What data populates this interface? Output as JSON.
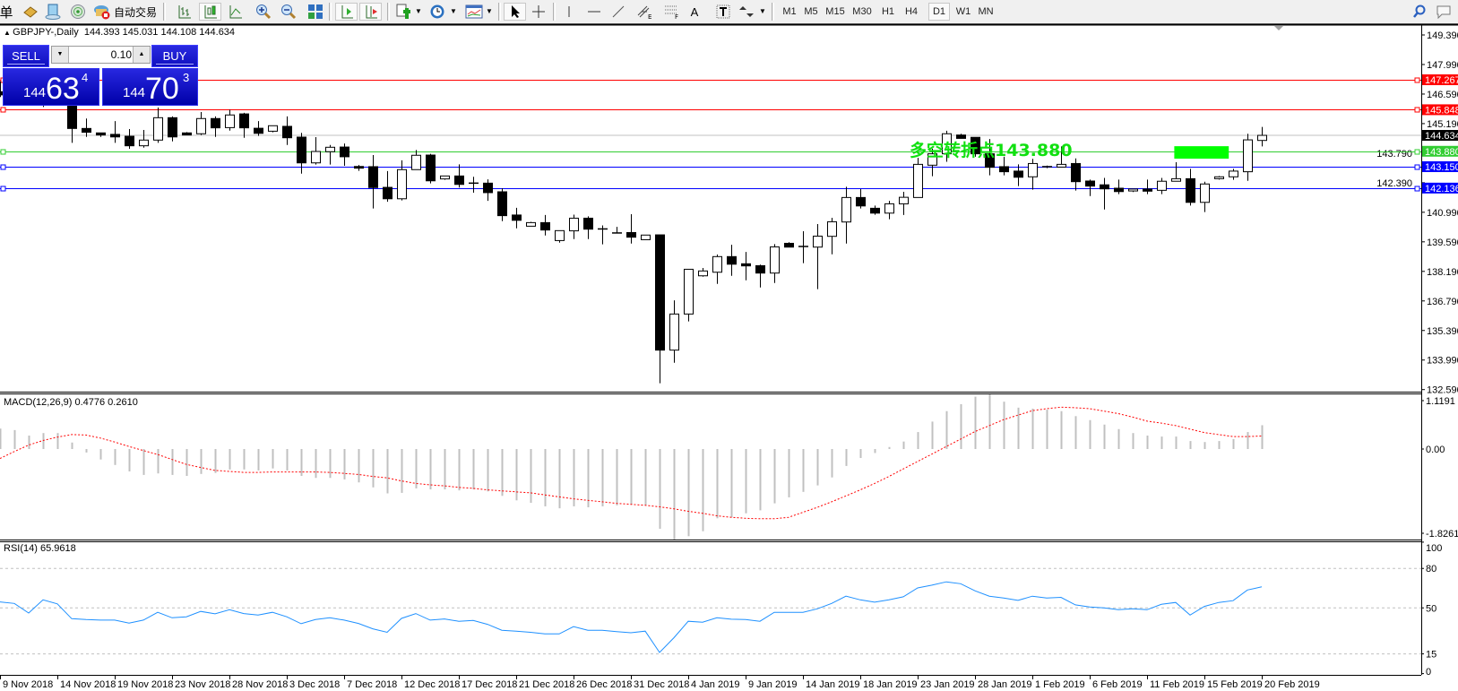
{
  "toolbar": {
    "cut_label": "单",
    "auto_trade_label": "自动交易",
    "timeframes": [
      "M1",
      "M5",
      "M15",
      "M30",
      "H1",
      "H4",
      "D1",
      "W1",
      "MN"
    ],
    "active_timeframe": "D1",
    "icons": [
      "book-icon",
      "navigator-icon",
      "signal-icon",
      "auto-trading-icon",
      "bar-chart-icon",
      "candlestick-chart-icon",
      "line-chart-icon",
      "zoom-in-icon",
      "zoom-out-icon",
      "tile-windows-icon",
      "auto-scroll-icon",
      "chart-shift-icon",
      "indicators-icon",
      "periods-icon",
      "templates-icon",
      "cursor-icon",
      "crosshair-icon",
      "vertical-line-icon",
      "horizontal-line-icon",
      "trend-line-icon",
      "equidistant-channel-icon",
      "fibonacci-icon",
      "text-icon",
      "text-label-icon",
      "arrows-icon",
      "search-icon",
      "chat-icon"
    ]
  },
  "chart": {
    "symbol_header": "GBPJPY-,Daily",
    "ohlc_header": "144.393 145.031 144.108 144.634"
  },
  "trade_panel": {
    "sell_label": "SELL",
    "buy_label": "BUY",
    "lot": "0.10",
    "sell_price": {
      "prefix": "144",
      "main": "63",
      "sup": "4"
    },
    "buy_price": {
      "prefix": "144",
      "main": "70",
      "sup": "3"
    },
    "color": "#1a1ad0"
  },
  "annotation": {
    "text": "多空转折点143.880",
    "color": "#10e010"
  },
  "chart_data": [
    {
      "type": "candlestick",
      "symbol": "GBPJPY-",
      "timeframe": "Daily",
      "ylim": [
        132.59,
        149.39
      ],
      "price_ticks": [
        "149.390",
        "147.990",
        "146.590",
        "145.190",
        "143.790",
        "142.390",
        "140.990",
        "139.590",
        "138.190",
        "136.790",
        "135.390",
        "133.990",
        "132.590"
      ],
      "x_tick_labels": [
        "9 Nov 2018",
        "14 Nov 2018",
        "19 Nov 2018",
        "23 Nov 2018",
        "28 Nov 2018",
        "3 Dec 2018",
        "7 Dec 2018",
        "12 Dec 2018",
        "17 Dec 2018",
        "21 Dec 2018",
        "26 Dec 2018",
        "31 Dec 2018",
        "4 Jan 2019",
        "9 Jan 2019",
        "14 Jan 2019",
        "18 Jan 2019",
        "23 Jan 2019",
        "28 Jan 2019",
        "1 Feb 2019",
        "6 Feb 2019",
        "11 Feb 2019",
        "15 Feb 2019",
        "20 Feb 2019"
      ],
      "ohlc": [
        [
          146.7,
          147.2,
          146.45,
          146.55
        ],
        [
          146.55,
          146.85,
          146.15,
          146.25
        ],
        [
          146.21,
          146.25,
          146.06,
          146.13
        ],
        [
          146.16,
          146.21,
          145.98,
          146.21
        ],
        [
          146.2,
          147.2,
          146.1,
          146.95
        ],
        [
          146.95,
          147.05,
          144.28,
          144.96
        ],
        [
          144.96,
          145.43,
          144.56,
          144.78
        ],
        [
          144.75,
          144.75,
          144.56,
          144.65
        ],
        [
          144.68,
          145.31,
          144.28,
          144.56
        ],
        [
          144.59,
          144.93,
          144.0,
          144.14
        ],
        [
          144.14,
          144.89,
          144.05,
          144.41
        ],
        [
          144.41,
          145.95,
          144.28,
          145.47
        ],
        [
          145.47,
          145.53,
          144.35,
          144.56
        ],
        [
          144.75,
          144.79,
          144.65,
          144.65
        ],
        [
          144.71,
          145.74,
          144.65,
          145.43
        ],
        [
          145.43,
          145.53,
          144.56,
          144.99
        ],
        [
          145.0,
          145.85,
          144.86,
          145.6
        ],
        [
          145.65,
          145.7,
          144.52,
          144.99
        ],
        [
          144.97,
          145.31,
          144.61,
          144.73
        ],
        [
          144.83,
          145.09,
          144.78,
          145.09
        ],
        [
          145.06,
          145.53,
          144.18,
          144.52
        ],
        [
          144.55,
          144.75,
          142.82,
          143.33
        ],
        [
          143.33,
          144.55,
          143.25,
          143.87
        ],
        [
          143.86,
          144.18,
          143.25,
          144.07
        ],
        [
          144.08,
          144.25,
          143.19,
          143.62
        ],
        [
          143.16,
          143.23,
          142.95,
          143.08
        ],
        [
          143.15,
          143.7,
          141.17,
          142.16
        ],
        [
          142.17,
          142.94,
          141.49,
          141.63
        ],
        [
          141.63,
          143.45,
          141.55,
          143.01
        ],
        [
          143.01,
          143.94,
          143.01,
          143.69
        ],
        [
          143.7,
          143.76,
          142.36,
          142.48
        ],
        [
          142.57,
          142.71,
          142.53,
          142.71
        ],
        [
          142.71,
          143.26,
          142.16,
          142.31
        ],
        [
          142.37,
          142.67,
          141.92,
          142.36
        ],
        [
          142.37,
          142.55,
          141.53,
          141.92
        ],
        [
          141.96,
          142.13,
          140.57,
          140.83
        ],
        [
          140.86,
          141.2,
          140.23,
          140.61
        ],
        [
          140.33,
          140.54,
          140.33,
          140.5
        ],
        [
          140.5,
          140.86,
          139.89,
          140.15
        ],
        [
          139.65,
          140.12,
          139.55,
          140.12
        ],
        [
          140.11,
          140.88,
          139.72,
          140.71
        ],
        [
          140.71,
          140.8,
          139.72,
          140.19
        ],
        [
          140.2,
          140.37,
          139.47,
          140.19
        ],
        [
          140.01,
          140.3,
          140.0,
          140.01
        ],
        [
          140.03,
          140.9,
          139.51,
          139.81
        ],
        [
          139.69,
          139.91,
          139.69,
          139.91
        ],
        [
          139.92,
          139.92,
          132.89,
          134.46
        ],
        [
          134.46,
          136.82,
          133.86,
          136.17
        ],
        [
          136.17,
          138.29,
          135.82,
          138.29
        ],
        [
          137.98,
          138.35,
          137.94,
          138.21
        ],
        [
          138.15,
          138.99,
          137.6,
          138.89
        ],
        [
          138.89,
          139.45,
          137.98,
          138.53
        ],
        [
          138.55,
          139.11,
          137.77,
          138.45
        ],
        [
          138.46,
          138.51,
          137.43,
          138.11
        ],
        [
          138.11,
          139.48,
          137.64,
          139.35
        ],
        [
          139.52,
          139.57,
          139.34,
          139.34
        ],
        [
          139.35,
          140.09,
          138.58,
          139.37
        ],
        [
          139.34,
          140.43,
          137.35,
          139.86
        ],
        [
          139.85,
          140.73,
          139.0,
          140.54
        ],
        [
          140.53,
          142.2,
          139.51,
          141.69
        ],
        [
          141.69,
          142.09,
          141.17,
          141.29
        ],
        [
          141.18,
          141.31,
          140.87,
          140.95
        ],
        [
          140.95,
          141.53,
          140.66,
          141.39
        ],
        [
          141.39,
          141.96,
          140.86,
          141.7
        ],
        [
          141.69,
          143.57,
          141.69,
          143.26
        ],
        [
          143.22,
          144.0,
          142.7,
          143.76
        ],
        [
          143.76,
          144.85,
          143.38,
          144.71
        ],
        [
          144.65,
          144.71,
          144.49,
          144.49
        ],
        [
          144.54,
          144.54,
          143.62,
          143.76
        ],
        [
          143.76,
          144.46,
          142.74,
          143.12
        ],
        [
          143.15,
          143.62,
          142.74,
          142.91
        ],
        [
          142.94,
          143.26,
          142.23,
          142.65
        ],
        [
          142.67,
          143.52,
          142.06,
          143.3
        ],
        [
          143.15,
          143.2,
          143.08,
          143.12
        ],
        [
          143.13,
          144.11,
          143.13,
          143.26
        ],
        [
          143.3,
          143.54,
          142.02,
          142.44
        ],
        [
          142.47,
          142.54,
          141.76,
          142.23
        ],
        [
          142.29,
          142.62,
          141.12,
          142.1
        ],
        [
          142.13,
          142.54,
          141.85,
          141.97
        ],
        [
          142.0,
          142.09,
          141.95,
          142.09
        ],
        [
          142.09,
          142.54,
          141.85,
          141.99
        ],
        [
          142.03,
          142.62,
          141.85,
          142.46
        ],
        [
          142.46,
          143.36,
          142.46,
          142.58
        ],
        [
          142.58,
          143.05,
          141.31,
          141.46
        ],
        [
          141.46,
          142.44,
          141.0,
          142.33
        ],
        [
          142.58,
          142.71,
          142.54,
          142.67
        ],
        [
          142.67,
          143.05,
          142.53,
          142.94
        ],
        [
          142.91,
          144.71,
          142.48,
          144.42
        ],
        [
          144.393,
          145.031,
          144.108,
          144.634
        ]
      ],
      "bid": {
        "price": 144.634,
        "label": "144.634",
        "color": "#c0c0c0"
      },
      "levels": [
        {
          "price": 147.267,
          "label": "147.267",
          "color": "#ff0000"
        },
        {
          "price": 145.848,
          "label": "145.848",
          "color": "#ff0000"
        },
        {
          "price": 143.88,
          "label": "143.880",
          "color": "#32cd32"
        },
        {
          "price": 143.15,
          "label": "143.150",
          "color": "#0000ff"
        },
        {
          "price": 142.136,
          "label": "142.136",
          "color": "#0000ff"
        }
      ],
      "rectangle": {
        "price_top": 144.12,
        "price_bottom": 143.53,
        "color": "#00ff00"
      }
    },
    {
      "type": "bar",
      "label": "MACD(12,26,9) 0.4776 0.2610",
      "ylim": [
        -1.8261,
        1.1191
      ],
      "axis_labels": [
        "1.1191",
        "0.00",
        "-1.8261"
      ],
      "main_color": "#c0c0c0",
      "signal_color": "#ff0000",
      "main": [
        0.41,
        0.38,
        0.27,
        0.32,
        0.32,
        0.13,
        -0.07,
        -0.21,
        -0.32,
        -0.45,
        -0.52,
        -0.49,
        -0.52,
        -0.54,
        -0.5,
        -0.48,
        -0.41,
        -0.41,
        -0.43,
        -0.39,
        -0.43,
        -0.54,
        -0.58,
        -0.58,
        -0.61,
        -0.67,
        -0.77,
        -0.89,
        -0.88,
        -0.79,
        -0.81,
        -0.81,
        -0.83,
        -0.81,
        -0.85,
        -0.94,
        -1.03,
        -1.08,
        -1.15,
        -1.19,
        -1.15,
        -1.17,
        -1.15,
        -1.13,
        -1.12,
        -1.13,
        -1.6,
        -1.8261,
        -1.75,
        -1.65,
        -1.39,
        -1.37,
        -1.29,
        -1.23,
        -1.09,
        -0.97,
        -0.86,
        -0.73,
        -0.57,
        -0.34,
        -0.18,
        -0.08,
        0.04,
        0.15,
        0.34,
        0.55,
        0.76,
        0.9,
        1.05,
        1.1191,
        0.95,
        0.83,
        0.81,
        0.79,
        0.76,
        0.66,
        0.58,
        0.49,
        0.4,
        0.32,
        0.27,
        0.25,
        0.25,
        0.16,
        0.14,
        0.16,
        0.2,
        0.34,
        0.4776
      ],
      "signal": [
        -0.19,
        -0.05,
        0.08,
        0.17,
        0.24,
        0.29,
        0.28,
        0.22,
        0.14,
        0.05,
        -0.03,
        -0.11,
        -0.21,
        -0.31,
        -0.37,
        -0.43,
        -0.45,
        -0.47,
        -0.47,
        -0.46,
        -0.46,
        -0.46,
        -0.46,
        -0.47,
        -0.49,
        -0.51,
        -0.55,
        -0.58,
        -0.64,
        -0.69,
        -0.72,
        -0.74,
        -0.77,
        -0.79,
        -0.82,
        -0.84,
        -0.86,
        -0.88,
        -0.92,
        -0.96,
        -1.0,
        -1.03,
        -1.06,
        -1.09,
        -1.11,
        -1.13,
        -1.16,
        -1.2,
        -1.25,
        -1.29,
        -1.34,
        -1.37,
        -1.39,
        -1.4,
        -1.4,
        -1.37,
        -1.27,
        -1.17,
        -1.06,
        -0.94,
        -0.82,
        -0.69,
        -0.55,
        -0.4,
        -0.25,
        -0.1,
        0.05,
        0.2,
        0.35,
        0.47,
        0.59,
        0.68,
        0.77,
        0.81,
        0.84,
        0.83,
        0.81,
        0.76,
        0.71,
        0.64,
        0.56,
        0.52,
        0.47,
        0.4,
        0.33,
        0.29,
        0.25,
        0.25,
        0.261
      ]
    },
    {
      "type": "line",
      "label": "RSI(14) 65.9618",
      "ylim": [
        0,
        100
      ],
      "axis_labels": [
        "100",
        "80",
        "50",
        "15",
        "0"
      ],
      "levels": [
        80,
        50,
        15
      ],
      "color": "#1e90ff",
      "values": [
        54.5,
        53.4,
        46.1,
        56.1,
        53.0,
        41.8,
        41.1,
        40.7,
        40.7,
        38.4,
        40.7,
        46.6,
        42.5,
        43.2,
        47.3,
        45.5,
        48.6,
        45.7,
        44.5,
        46.6,
        43.2,
        38.0,
        41.1,
        42.5,
        40.7,
        38.2,
        34.1,
        31.4,
        42.0,
        45.7,
        40.7,
        41.6,
        39.8,
        40.4,
        37.5,
        33.0,
        32.3,
        31.4,
        30.2,
        30.2,
        35.7,
        33.0,
        33.0,
        32.0,
        31.1,
        32.3,
        16.1,
        27.3,
        39.8,
        39.1,
        42.5,
        41.4,
        41.1,
        39.8,
        46.6,
        46.6,
        46.6,
        49.3,
        53.4,
        58.9,
        56.1,
        54.3,
        56.1,
        58.4,
        65.2,
        67.3,
        69.8,
        68.4,
        63.0,
        58.9,
        57.5,
        55.7,
        58.9,
        57.5,
        58.0,
        52.3,
        50.7,
        50.0,
        48.6,
        49.3,
        48.6,
        52.7,
        54.1,
        44.5,
        51.1,
        54.1,
        55.5,
        63.6,
        65.9618
      ]
    }
  ]
}
